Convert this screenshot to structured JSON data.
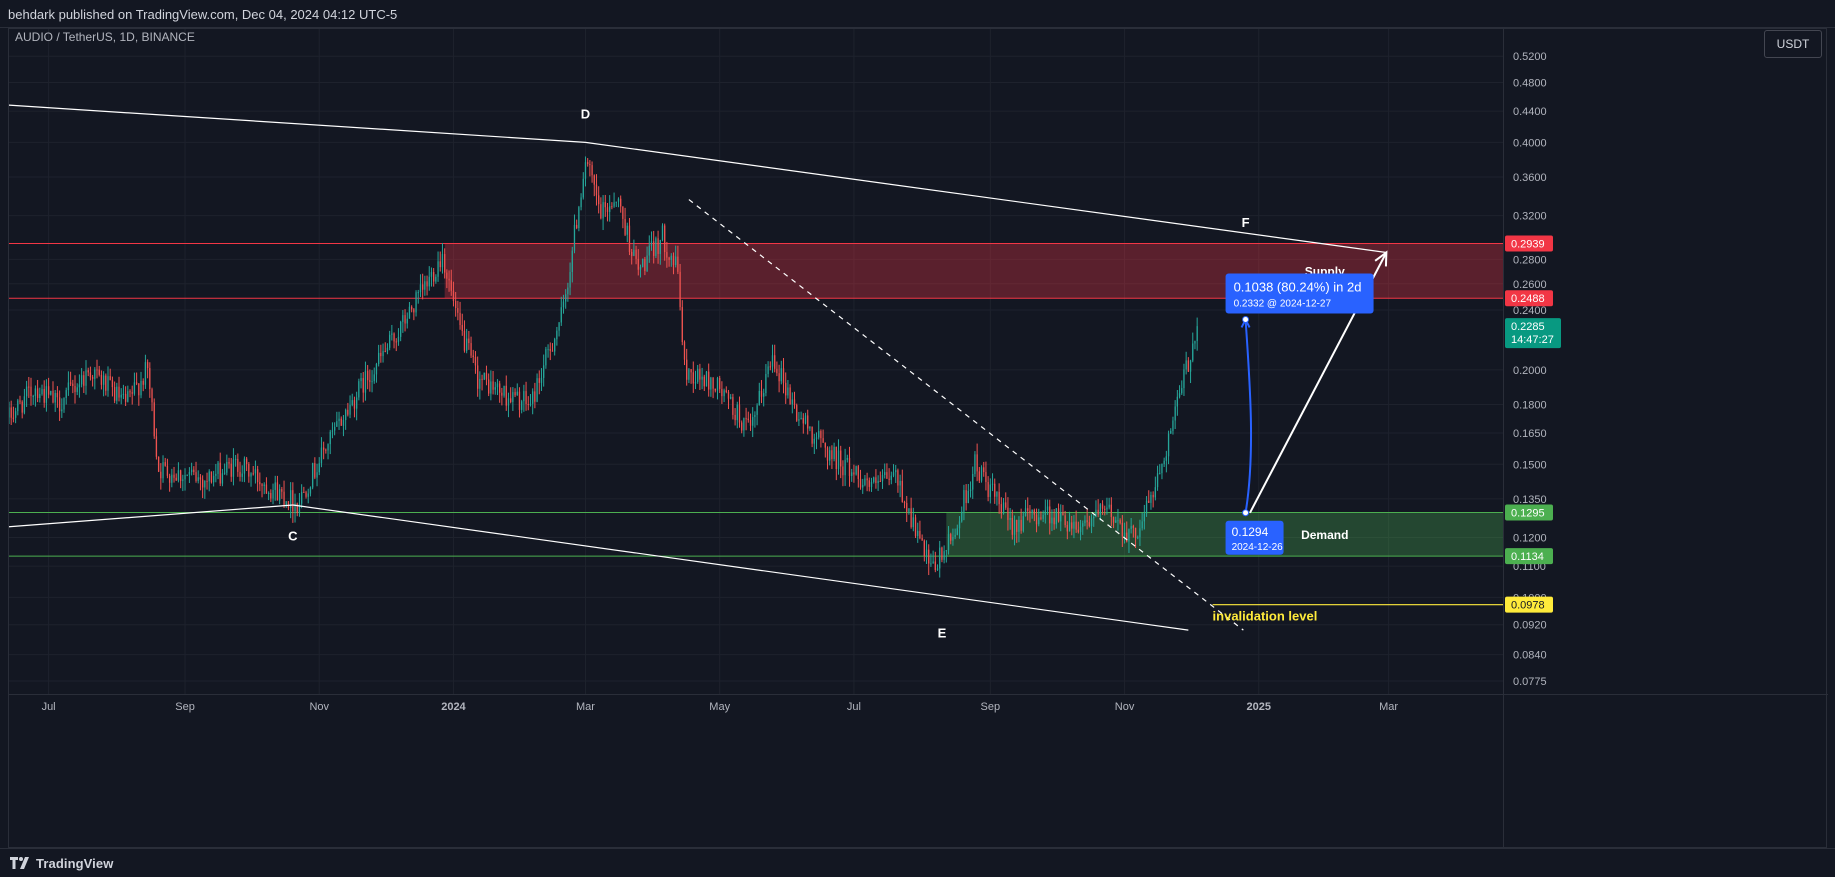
{
  "header": {
    "published_text": "behdark published on TradingView.com, Dec 04, 2024 04:12 UTC-5"
  },
  "footer": {
    "brand": "TradingView"
  },
  "currency_button": "USDT",
  "chart_data": {
    "type": "candlestick",
    "symbol_label": "AUDIO / TetherUS, 1D, BINANCE",
    "y_scale": "log",
    "ylim": [
      0.0745,
      0.565
    ],
    "xlim": [
      "2023-06-13",
      "2025-04-22"
    ],
    "y_ticks": [
      "0.5200",
      "0.4800",
      "0.4400",
      "0.4000",
      "0.3600",
      "0.3200",
      "0.2800",
      "0.2600",
      "0.2400",
      "0.2000",
      "0.1800",
      "0.1650",
      "0.1500",
      "0.1350",
      "0.1200",
      "0.1100",
      "0.1000",
      "0.0920",
      "0.0840",
      "0.0775"
    ],
    "x_ticks": [
      {
        "label": "Jul",
        "date": "2023-07-01"
      },
      {
        "label": "Sep",
        "date": "2023-09-01"
      },
      {
        "label": "Nov",
        "date": "2023-11-01"
      },
      {
        "label": "2024",
        "date": "2024-01-01"
      },
      {
        "label": "Mar",
        "date": "2024-03-01"
      },
      {
        "label": "May",
        "date": "2024-05-01"
      },
      {
        "label": "Jul",
        "date": "2024-07-01"
      },
      {
        "label": "Sep",
        "date": "2024-09-01"
      },
      {
        "label": "Nov",
        "date": "2024-11-01"
      },
      {
        "label": "2025",
        "date": "2025-01-01"
      },
      {
        "label": "Mar",
        "date": "2025-03-01"
      }
    ],
    "price_anchors": [
      [
        "2023-06-13",
        0.173
      ],
      [
        "2023-06-25",
        0.19
      ],
      [
        "2023-07-05",
        0.18
      ],
      [
        "2023-07-20",
        0.2
      ],
      [
        "2023-08-05",
        0.18
      ],
      [
        "2023-08-15",
        0.2
      ],
      [
        "2023-08-20",
        0.148
      ],
      [
        "2023-09-10",
        0.143
      ],
      [
        "2023-09-25",
        0.15
      ],
      [
        "2023-10-10",
        0.14
      ],
      [
        "2023-10-22",
        0.133
      ],
      [
        "2023-11-05",
        0.16
      ],
      [
        "2023-11-20",
        0.19
      ],
      [
        "2023-12-05",
        0.22
      ],
      [
        "2023-12-20",
        0.26
      ],
      [
        "2023-12-27",
        0.285
      ],
      [
        "2024-01-03",
        0.23
      ],
      [
        "2024-01-12",
        0.195
      ],
      [
        "2024-01-25",
        0.185
      ],
      [
        "2024-02-05",
        0.18
      ],
      [
        "2024-02-20",
        0.24
      ],
      [
        "2024-03-01",
        0.38
      ],
      [
        "2024-03-08",
        0.32
      ],
      [
        "2024-03-15",
        0.34
      ],
      [
        "2024-03-25",
        0.27
      ],
      [
        "2024-04-05",
        0.3
      ],
      [
        "2024-04-12",
        0.27
      ],
      [
        "2024-04-15",
        0.2
      ],
      [
        "2024-04-30",
        0.19
      ],
      [
        "2024-05-15",
        0.165
      ],
      [
        "2024-05-25",
        0.21
      ],
      [
        "2024-06-05",
        0.175
      ],
      [
        "2024-06-20",
        0.155
      ],
      [
        "2024-07-10",
        0.14
      ],
      [
        "2024-07-20",
        0.145
      ],
      [
        "2024-08-05",
        0.108
      ],
      [
        "2024-08-15",
        0.12
      ],
      [
        "2024-08-25",
        0.15
      ],
      [
        "2024-09-10",
        0.125
      ],
      [
        "2024-09-25",
        0.13
      ],
      [
        "2024-10-10",
        0.125
      ],
      [
        "2024-10-25",
        0.13
      ],
      [
        "2024-11-05",
        0.12
      ],
      [
        "2024-11-15",
        0.14
      ],
      [
        "2024-11-25",
        0.18
      ],
      [
        "2024-12-04",
        0.2285
      ]
    ],
    "zones": [
      {
        "name": "Supply",
        "from": "2023-12-28",
        "to": "2025-04-22",
        "low": 0.2488,
        "high": 0.2939,
        "color": "#f23645"
      },
      {
        "name": "Demand",
        "from": "2024-08-12",
        "to": "2025-04-22",
        "low": 0.1134,
        "high": 0.1295,
        "color": "#4caf50"
      }
    ],
    "price_labels": [
      {
        "value": "0.2939",
        "price": 0.2939,
        "bg": "#f23645",
        "fg": "#ffffff"
      },
      {
        "value": "0.2488",
        "price": 0.2488,
        "bg": "#f23645",
        "fg": "#ffffff"
      },
      {
        "value": "0.1295",
        "price": 0.1295,
        "bg": "#4caf50",
        "fg": "#ffffff"
      },
      {
        "value": "0.1134",
        "price": 0.1134,
        "bg": "#4caf50",
        "fg": "#ffffff"
      },
      {
        "value": "0.0978",
        "price": 0.0978,
        "bg": "#ffeb3b",
        "fg": "#131722"
      }
    ],
    "current_price": {
      "value": "0.2285",
      "countdown": "14:47:27",
      "price": 0.2285,
      "color": "#089981"
    },
    "invalidation": {
      "label": "invalidation level",
      "price": 0.0978,
      "from": "2024-12-11",
      "color": "#ffeb3b"
    },
    "wave_lines": [
      {
        "from": [
          "2023-06-13",
          0.448
        ],
        "to": [
          "2024-03-01",
          0.4
        ]
      },
      {
        "from": [
          "2024-03-01",
          0.4
        ],
        "to": [
          "2025-02-28",
          0.286
        ]
      },
      {
        "from": [
          "2023-06-13",
          0.124
        ],
        "to": [
          "2023-10-20",
          0.1325
        ]
      },
      {
        "from": [
          "2023-10-20",
          0.1325
        ],
        "to": [
          "2024-11-30",
          0.0905
        ]
      }
    ],
    "dashed_trendline": {
      "from": [
        "2024-04-17",
        0.336
      ],
      "to": [
        "2024-12-25",
        0.0905
      ]
    },
    "wave_labels": [
      {
        "label": "C",
        "date": "2023-10-20",
        "price": 0.119
      },
      {
        "label": "D",
        "date": "2024-03-01",
        "price": 0.43
      },
      {
        "label": "E",
        "date": "2024-08-10",
        "price": 0.0885
      },
      {
        "label": "F",
        "date": "2024-12-26",
        "price": 0.309
      }
    ],
    "zone_labels": [
      {
        "label": "Supply",
        "date": "2025-01-31",
        "price": 0.27
      },
      {
        "label": "Demand",
        "date": "2025-01-31",
        "price": 0.121
      }
    ],
    "projection_arrow": {
      "from": [
        "2024-12-28",
        0.1294
      ],
      "to": [
        "2025-02-28",
        0.286
      ]
    },
    "measure": {
      "from": [
        "2024-12-26",
        0.1294
      ],
      "to": [
        "2024-12-26",
        0.2332
      ],
      "start_label": "0.1294",
      "start_date": "2024-12-26",
      "end_main": "0.1038 (80.24%) in 2d",
      "end_sub": "0.2332 @ 2024-12-27",
      "color": "#2962ff"
    },
    "colors": {
      "up": "#26a69a",
      "down": "#ef5350",
      "grid": "#1e222d",
      "axis_text": "#b2b5be"
    }
  }
}
